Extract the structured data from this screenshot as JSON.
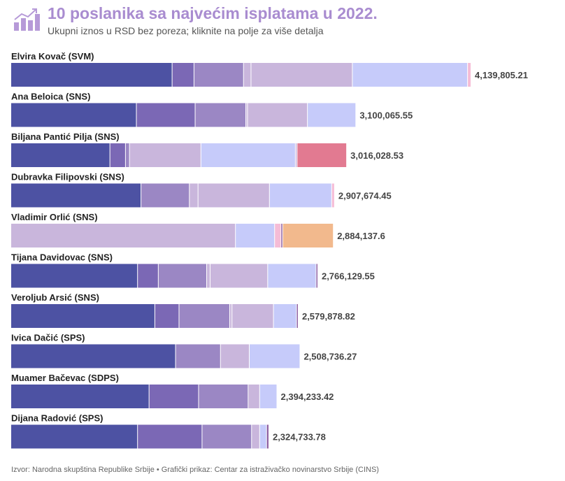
{
  "header": {
    "title": "10 poslanika sa najvećim isplatama u 2022.",
    "subtitle": "Ukupni iznos u RSD bez poreza; kliknite na polje za više detalja"
  },
  "icons": {
    "logo": "bar-chart-trend-icon"
  },
  "colors": {
    "title": "#a98cd0",
    "segments": [
      "#4d52a3",
      "#7b68b5",
      "#9b87c4",
      "#c9b6dc",
      "#c6cbfa",
      "#f5bcd6",
      "#e27a91",
      "#f2b98d",
      "#8e5fa2"
    ]
  },
  "chart_data": {
    "type": "bar",
    "orientation": "horizontal",
    "stacked": true,
    "title": "10 poslanika sa najvećim isplatama u 2022.",
    "subtitle": "Ukupni iznos u RSD bez poreza; kliknite na polje za više detalja",
    "xlim": [
      0,
      4280000
    ],
    "grid": false,
    "legend": "none",
    "rows": [
      {
        "name": "Elvira Kovač (SVM)",
        "total_label": "4,139,805.21",
        "segments": [
          [
            0,
            1400000
          ],
          [
            1,
            190000
          ],
          [
            2,
            430000
          ],
          [
            3,
            65000
          ],
          [
            3,
            880000
          ],
          [
            4,
            1000000
          ],
          [
            5,
            30000
          ]
        ]
      },
      {
        "name": "Ana Beloica (SNS)",
        "total_label": "3,100,065.55",
        "segments": [
          [
            0,
            1090000
          ],
          [
            1,
            510000
          ],
          [
            2,
            440000
          ],
          [
            3,
            15000
          ],
          [
            3,
            520000
          ],
          [
            4,
            420000
          ]
        ]
      },
      {
        "name": "Biljana Pantić Pilja (SNS)",
        "total_label": "3,016,028.53",
        "segments": [
          [
            0,
            860000
          ],
          [
            1,
            135000
          ],
          [
            2,
            35000
          ],
          [
            3,
            620000
          ],
          [
            4,
            820000
          ],
          [
            3,
            15000
          ],
          [
            6,
            430000
          ]
        ]
      },
      {
        "name": "Dubravka Filipovski (SNS)",
        "total_label": "2,907,674.45",
        "segments": [
          [
            0,
            1130000
          ],
          [
            2,
            420000
          ],
          [
            3,
            75000
          ],
          [
            3,
            620000
          ],
          [
            4,
            540000
          ],
          [
            5,
            25000
          ]
        ]
      },
      {
        "name": "Vladimir Orlić (SNS)",
        "total_label": "2,884,137.6",
        "segments": [
          [
            3,
            1950000
          ],
          [
            4,
            340000
          ],
          [
            5,
            55000
          ],
          [
            8,
            15000
          ],
          [
            7,
            440000
          ]
        ]
      },
      {
        "name": "Tijana Davidovac (SNS)",
        "total_label": "2,766,129.55",
        "segments": [
          [
            0,
            1100000
          ],
          [
            1,
            180000
          ],
          [
            2,
            420000
          ],
          [
            3,
            30000
          ],
          [
            3,
            500000
          ],
          [
            4,
            420000
          ],
          [
            8,
            15000
          ]
        ]
      },
      {
        "name": "Veroljub Arsić (SNS)",
        "total_label": "2,579,878.82",
        "segments": [
          [
            0,
            1250000
          ],
          [
            1,
            210000
          ],
          [
            2,
            440000
          ],
          [
            3,
            20000
          ],
          [
            3,
            360000
          ],
          [
            4,
            200000
          ],
          [
            8,
            15000
          ]
        ]
      },
      {
        "name": "Ivica Dačić (SPS)",
        "total_label": "2,508,736.27",
        "segments": [
          [
            0,
            1430000
          ],
          [
            2,
            390000
          ],
          [
            3,
            250000
          ],
          [
            4,
            440000
          ]
        ]
      },
      {
        "name": "Muamer Bačevac (SDPS)",
        "total_label": "2,394,233.42",
        "segments": [
          [
            0,
            1200000
          ],
          [
            1,
            430000
          ],
          [
            2,
            430000
          ],
          [
            3,
            100000
          ],
          [
            4,
            150000
          ]
        ]
      },
      {
        "name": "Dijana Radović (SPS)",
        "total_label": "2,324,733.78",
        "segments": [
          [
            0,
            1100000
          ],
          [
            1,
            560000
          ],
          [
            2,
            430000
          ],
          [
            3,
            70000
          ],
          [
            4,
            60000
          ],
          [
            8,
            20000
          ]
        ]
      }
    ]
  },
  "footer": {
    "source": "Izvor: Narodna skupština Republike Srbije • Grafički prikaz: Centar za istraživačko novinarstvo Srbije (CINS)"
  }
}
